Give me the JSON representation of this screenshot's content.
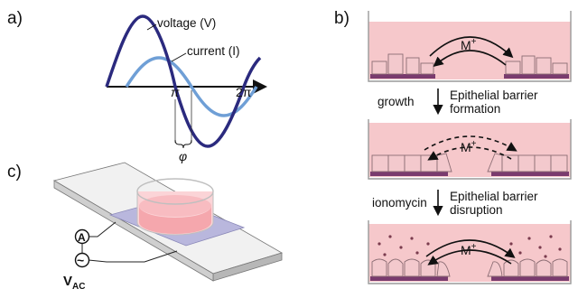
{
  "panels": {
    "a": {
      "label": "a)",
      "voltage_label": "voltage (V)",
      "current_label": "current (I)",
      "tick_pi": "π",
      "tick_2pi": "2π",
      "phase_label": "φ",
      "colors": {
        "voltage": "#2b2a7e",
        "current": "#6f9fd6",
        "axis": "#111111"
      }
    },
    "b": {
      "label": "b)",
      "ion": "M",
      "ion_charge": "+",
      "step1_left": "growth",
      "step1_right_line1": "Epithelial barrier",
      "step1_right_line2": "formation",
      "step2_left": "ionomycin",
      "step2_right_line1": "Epithelial barrier",
      "step2_right_line2": "disruption",
      "colors": {
        "medium": "#f6c8cb",
        "cell": "#f3c9cd",
        "cell_outline": "#8c6d74",
        "substrate": "#7a3b6e",
        "well": "#9a9a9a"
      }
    },
    "c": {
      "label": "c)",
      "ammeter": "A",
      "source_symbol": "~",
      "vac_main": "V",
      "vac_sub": "AC",
      "colors": {
        "slide_top": "#f1f1f1",
        "slide_side": "#b7b7b7",
        "electrode": "#b9b7dd",
        "well": "#f5a7ad"
      }
    }
  }
}
